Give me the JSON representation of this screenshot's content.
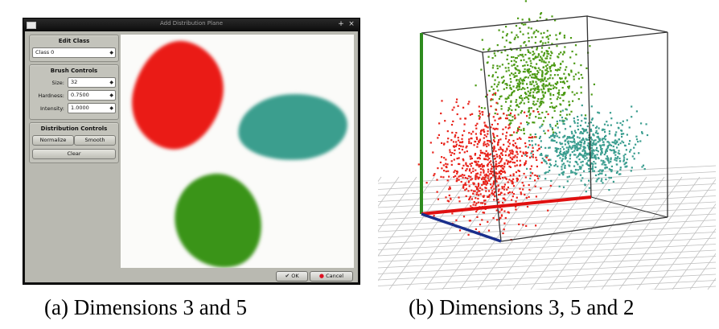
{
  "dialog": {
    "title": "Add Distribution Plane",
    "edit_class": {
      "heading": "Edit Class",
      "class_value": "Class 0"
    },
    "brush_controls": {
      "heading": "Brush Controls",
      "size_label": "Size:",
      "size_value": "32",
      "hardness_label": "Hardness:",
      "hardness_value": "0.7500",
      "intensity_label": "Intensity:",
      "intensity_value": "1.0000"
    },
    "distribution_controls": {
      "heading": "Distribution Controls",
      "normalize_label": "Normalize",
      "smooth_label": "Smooth",
      "clear_label": "Clear"
    },
    "ok_label": "OK",
    "cancel_label": "Cancel",
    "blob_colors": {
      "red": "#ea1b16",
      "teal": "#3b9e8e",
      "green": "#3a9418"
    }
  },
  "scatter": {
    "cluster_colors": {
      "red": "#e8231b",
      "teal": "#3a9d8f",
      "green": "#4c9a14"
    },
    "axis_colors": {
      "vertical": "#2e8b1e",
      "horizontal_a": "#e01010",
      "horizontal_b": "#1a2f8c"
    }
  },
  "captions": {
    "a": "(a)  Dimensions 3 and 5",
    "b": "(b)  Dimensions 3, 5 and 2"
  }
}
